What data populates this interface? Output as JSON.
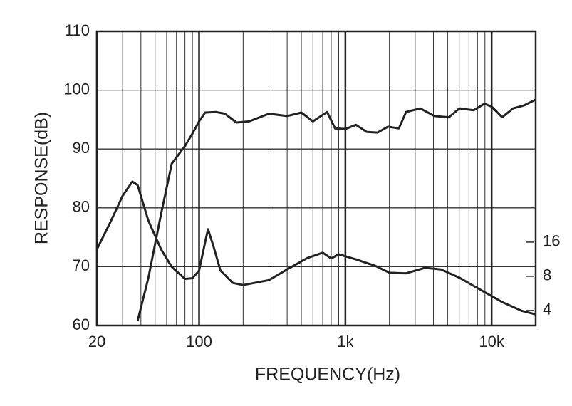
{
  "chart_data": {
    "type": "line",
    "xlabel": "FREQUENCY(Hz)",
    "ylabel": "RESPONSE(dB)",
    "xscale": "log",
    "y2scale": "log",
    "grid": true,
    "xlim": [
      20,
      20000
    ],
    "xticks": [
      20,
      100,
      {
        "value": 1000,
        "label": "1k"
      },
      {
        "value": 10000,
        "label": "10k"
      }
    ],
    "ylim": [
      60,
      110
    ],
    "yticks": [
      60,
      70,
      80,
      90,
      100,
      110
    ],
    "y2lim": [
      2.95,
      1149
    ],
    "y2ticks": [
      4,
      8,
      16
    ],
    "series": [
      {
        "color": "#222222",
        "x": [
          38,
          45,
          55,
          65,
          80,
          90,
          100,
          110,
          130,
          150,
          180,
          220,
          300,
          400,
          500,
          600,
          750,
          850,
          1000,
          1180,
          1400,
          1660,
          1960,
          2320,
          2600,
          3250,
          4070,
          5090,
          6030,
          7550,
          8930,
          10000,
          11800,
          14000,
          16600,
          20000
        ],
        "values": [
          60.8,
          68.1,
          79.0,
          87.5,
          90.5,
          92.6,
          94.7,
          96.2,
          96.3,
          96.0,
          94.5,
          94.7,
          96.0,
          95.6,
          96.2,
          94.7,
          96.3,
          93.5,
          93.4,
          94.1,
          92.9,
          92.8,
          93.8,
          93.5,
          96.3,
          96.9,
          95.6,
          95.4,
          96.9,
          96.6,
          97.7,
          97.2,
          95.4,
          96.9,
          97.4,
          98.4
        ]
      },
      {
        "color": "#222222",
        "axis": "y2",
        "x": [
          20,
          25,
          30,
          35,
          38,
          45,
          55,
          65,
          80,
          90,
          100,
          110,
          115,
          125,
          140,
          170,
          200,
          300,
          400,
          550,
          700,
          800,
          900,
          1200,
          1600,
          2000,
          2600,
          3500,
          4500,
          6000,
          8000,
          12000,
          16000,
          20000
        ],
        "values": [
          13.8,
          24.7,
          41,
          54.6,
          50.8,
          24.7,
          13.8,
          9.7,
          7.6,
          7.7,
          9.0,
          16,
          20.8,
          14.9,
          9.0,
          7.0,
          6.7,
          7.4,
          9.2,
          11.6,
          12.9,
          11.5,
          12.5,
          11.2,
          9.9,
          8.6,
          8.5,
          9.5,
          9.2,
          7.8,
          6.3,
          4.7,
          3.98,
          3.7
        ]
      }
    ]
  }
}
